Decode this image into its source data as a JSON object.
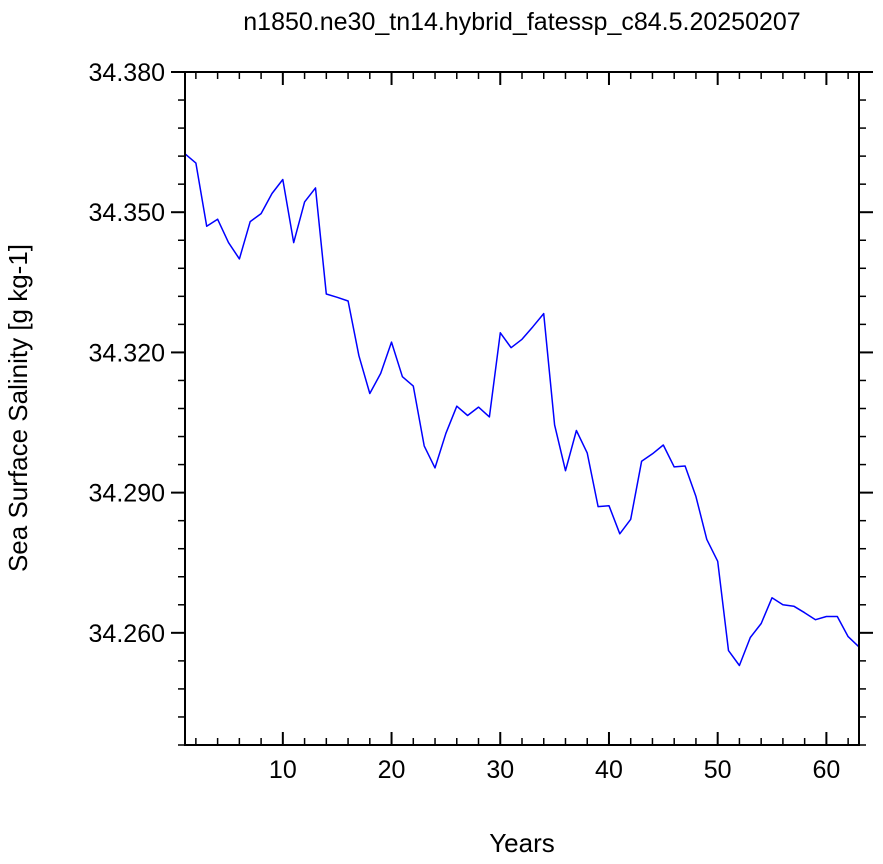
{
  "chart_data": {
    "type": "line",
    "title": "n1850.ne30_tn14.hybrid_fatessp_c84.5.20250207",
    "xlabel": "Years",
    "ylabel": "Sea Surface Salinity [g kg-1]",
    "xlim": [
      1,
      63
    ],
    "ylim": [
      34.236,
      34.38
    ],
    "x_ticks": [
      10,
      20,
      30,
      40,
      50,
      60
    ],
    "x_tick_labels": [
      "10",
      "20",
      "30",
      "40",
      "50",
      "60"
    ],
    "y_ticks": [
      34.26,
      34.29,
      34.32,
      34.35,
      34.38
    ],
    "y_tick_labels": [
      "34.260",
      "34.290",
      "34.320",
      "34.350",
      "34.380"
    ],
    "grid": false,
    "series": [
      {
        "color": "#0000ff",
        "x": [
          1,
          2,
          3,
          4,
          5,
          6,
          7,
          8,
          9,
          10,
          11,
          12,
          13,
          14,
          15,
          16,
          17,
          18,
          19,
          20,
          21,
          22,
          23,
          24,
          25,
          26,
          27,
          28,
          29,
          30,
          31,
          32,
          33,
          34,
          35,
          36,
          37,
          38,
          39,
          40,
          41,
          42,
          43,
          44,
          45,
          46,
          47,
          48,
          49,
          50,
          51,
          52,
          53,
          54,
          55,
          56,
          57,
          58,
          59,
          60,
          61,
          62,
          63
        ],
        "values": [
          34.3625,
          34.3605,
          34.347,
          34.3485,
          34.3435,
          34.34,
          34.348,
          34.3497,
          34.354,
          34.357,
          34.3435,
          34.3522,
          34.3552,
          34.3325,
          34.3318,
          34.331,
          34.3193,
          34.3112,
          34.3155,
          34.3222,
          34.3148,
          34.3128,
          34.3,
          34.2953,
          34.3027,
          34.3085,
          34.3065,
          34.3083,
          34.3062,
          34.3242,
          34.321,
          34.3228,
          34.3255,
          34.3283,
          34.3045,
          34.2947,
          34.3033,
          34.2985,
          34.287,
          34.2872,
          34.2812,
          34.2843,
          34.2967,
          34.2983,
          34.3002,
          34.2955,
          34.2957,
          34.2892,
          34.28,
          34.2753,
          34.2562,
          34.253,
          34.259,
          34.262,
          34.2675,
          34.266,
          34.2657,
          34.2643,
          34.2628,
          34.2635,
          34.2635,
          34.2592,
          34.257
        ]
      }
    ]
  }
}
